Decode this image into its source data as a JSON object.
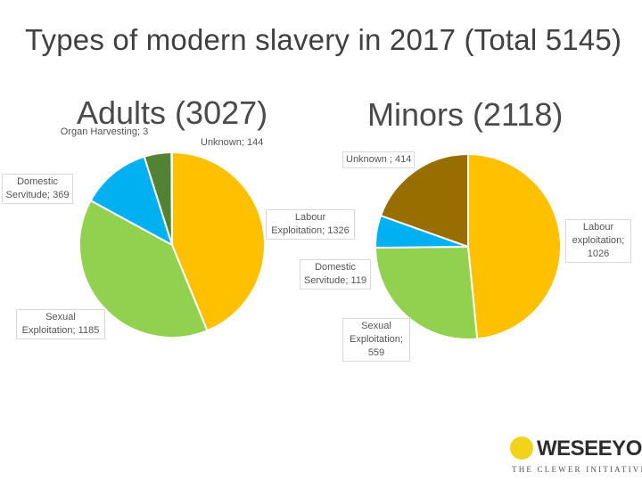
{
  "page": {
    "title": "Types of modern slavery in 2017 (Total 5145)"
  },
  "chart_data": [
    {
      "type": "pie",
      "title": "Adults (3027)",
      "start_angle_deg": 0,
      "slices": [
        {
          "label": "Labour Exploitation; 1326",
          "name": "Labour Exploitation",
          "value": 1326,
          "color": "#ffc000"
        },
        {
          "label": "Sexual Exploitation; 1185",
          "name": "Sexual Exploitation",
          "value": 1185,
          "color": "#92d050"
        },
        {
          "label": "Domestic Servitude; 369",
          "name": "Domestic Servitude",
          "value": 369,
          "color": "#00b0f0"
        },
        {
          "label": "Unknown; 144",
          "name": "Unknown",
          "value": 144,
          "color": "#548235"
        },
        {
          "label": "Organ Harvesting; 3",
          "name": "Organ Harvesting",
          "value": 3,
          "color": "#c00000"
        }
      ]
    },
    {
      "type": "pie",
      "title": "Minors (2118)",
      "start_angle_deg": 0,
      "slices": [
        {
          "label": "Labour exploitation; 1026",
          "name": "Labour exploitation",
          "value": 1026,
          "color": "#ffc000"
        },
        {
          "label": "Sexual Exploitation; 559",
          "name": "Sexual Exploitation",
          "value": 559,
          "color": "#92d050"
        },
        {
          "label": "Domestic Servitude; 119",
          "name": "Domestic Servitude",
          "value": 119,
          "color": "#00b0f0"
        },
        {
          "label": "Unknown ; 414",
          "name": "Unknown",
          "value": 414,
          "color": "#996e00"
        }
      ]
    }
  ],
  "logo": {
    "brand": "WESEEYOU.",
    "sub": "THE CLEWER INITIATIVE",
    "dot_color": "#f2d31b"
  }
}
